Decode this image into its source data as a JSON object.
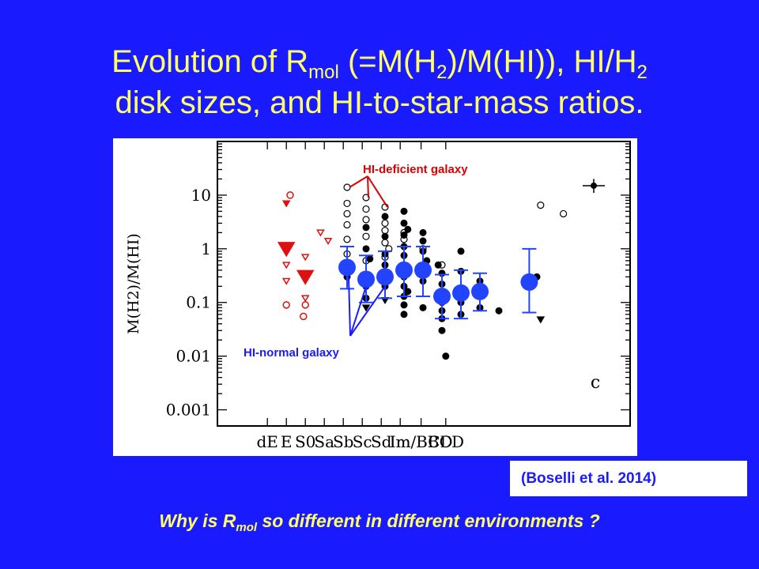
{
  "slide": {
    "title_line1_a": "Evolution of  R",
    "title_line1_sub1": "mol",
    "title_line1_b": " (=M(H",
    "title_line1_sub2": "2",
    "title_line1_c": ")/M(HI)),   HI/H",
    "title_line1_sub3": "2",
    "title_line2": "disk sizes, and HI-to-star-mass ratios.",
    "citation": "(Boselli et al. 2014)",
    "question_a": "Why is R",
    "question_sub": "mol",
    "question_b": "  so different in different environments ?"
  },
  "colors": {
    "background": "#1a1aff",
    "title": "#ffff66",
    "hi_deficient": "#dd0000",
    "hi_normal": "#1a1aff",
    "mean_points": "#2244ff",
    "early_type_points": "#dd1111"
  },
  "chart_data": {
    "type": "scatter",
    "ylabel": "M(H2)/M(HI)",
    "yscale": "log",
    "ylim": [
      0.0005,
      100
    ],
    "yticks": [
      {
        "value": 10,
        "label": "10"
      },
      {
        "value": 1,
        "label": "1"
      },
      {
        "value": 0.1,
        "label": "0.1"
      },
      {
        "value": 0.01,
        "label": "0.01"
      },
      {
        "value": 0.001,
        "label": "0.001"
      }
    ],
    "categories": [
      "dE",
      "E",
      "S0",
      "Sa",
      "Sb",
      "Sc",
      "Sd",
      "Im",
      "Im/BCD",
      "BCD"
    ],
    "panel_label": "c",
    "annotations": {
      "deficient": "HI-deficient galaxy",
      "normal": "HI-normal galaxy"
    },
    "mean_points": [
      {
        "x": 3.0,
        "y": 0.45,
        "lo": 0.18,
        "hi": 1.1
      },
      {
        "x": 3.5,
        "y": 0.27,
        "lo": 0.1,
        "hi": 0.75
      },
      {
        "x": 4.0,
        "y": 0.3,
        "lo": 0.12,
        "hi": 0.9
      },
      {
        "x": 4.5,
        "y": 0.4,
        "lo": 0.13,
        "hi": 1.1
      },
      {
        "x": 5.0,
        "y": 0.4,
        "lo": 0.13,
        "hi": 1.1
      },
      {
        "x": 5.5,
        "y": 0.13,
        "lo": 0.05,
        "hi": 0.33
      },
      {
        "x": 6.0,
        "y": 0.15,
        "lo": 0.05,
        "hi": 0.4
      },
      {
        "x": 6.5,
        "y": 0.16,
        "lo": 0.07,
        "hi": 0.35
      },
      {
        "x": 7.8,
        "y": 0.24,
        "lo": 0.065,
        "hi": 1.0
      }
    ],
    "deficient_limits_large": [
      {
        "x": 1.4,
        "y": 1.0
      },
      {
        "x": 1.9,
        "y": 0.3
      }
    ],
    "deficient_limits_small": [
      {
        "x": 1.4,
        "y": 7.0
      },
      {
        "x": 1.4,
        "y": 0.5
      },
      {
        "x": 1.4,
        "y": 0.25
      },
      {
        "x": 1.9,
        "y": 0.7
      },
      {
        "x": 1.9,
        "y": 0.12
      },
      {
        "x": 2.3,
        "y": 2.0
      },
      {
        "x": 2.5,
        "y": 1.4
      }
    ],
    "deficient_open": [
      {
        "x": 1.5,
        "y": 10.0
      },
      {
        "x": 1.4,
        "y": 0.09
      },
      {
        "x": 1.9,
        "y": 0.09
      },
      {
        "x": 1.85,
        "y": 0.055
      }
    ],
    "normal_limits": [
      {
        "x": 3.5,
        "y": 0.08
      },
      {
        "x": 4.0,
        "y": 0.11
      },
      {
        "x": 8.1,
        "y": 0.048
      }
    ],
    "error_bar_sample": {
      "x": 9.5,
      "y": 15,
      "lo": 11,
      "hi": 20
    },
    "hi_normal_filled": [
      {
        "x": 3.0,
        "y": 0.3
      },
      {
        "x": 3.5,
        "y": 2.5
      },
      {
        "x": 3.5,
        "y": 1.0
      },
      {
        "x": 3.5,
        "y": 0.2
      },
      {
        "x": 3.5,
        "y": 0.12
      },
      {
        "x": 3.6,
        "y": 0.65
      },
      {
        "x": 4.0,
        "y": 4.0
      },
      {
        "x": 4.0,
        "y": 1.7
      },
      {
        "x": 4.0,
        "y": 0.8
      },
      {
        "x": 4.0,
        "y": 0.5
      },
      {
        "x": 4.0,
        "y": 0.2
      },
      {
        "x": 4.1,
        "y": 0.35
      },
      {
        "x": 4.5,
        "y": 5.0
      },
      {
        "x": 4.5,
        "y": 3.0
      },
      {
        "x": 4.5,
        "y": 1.8
      },
      {
        "x": 4.5,
        "y": 1.1
      },
      {
        "x": 4.5,
        "y": 0.75
      },
      {
        "x": 4.5,
        "y": 0.5
      },
      {
        "x": 4.5,
        "y": 0.3
      },
      {
        "x": 4.5,
        "y": 0.2
      },
      {
        "x": 4.5,
        "y": 0.13
      },
      {
        "x": 4.5,
        "y": 0.09
      },
      {
        "x": 4.5,
        "y": 0.06
      },
      {
        "x": 4.6,
        "y": 2.3
      },
      {
        "x": 4.6,
        "y": 0.4
      },
      {
        "x": 4.6,
        "y": 0.16
      },
      {
        "x": 5.0,
        "y": 2.0
      },
      {
        "x": 5.0,
        "y": 1.4
      },
      {
        "x": 5.0,
        "y": 0.9
      },
      {
        "x": 5.0,
        "y": 0.25
      },
      {
        "x": 5.0,
        "y": 0.08
      },
      {
        "x": 5.1,
        "y": 0.6
      },
      {
        "x": 5.4,
        "y": 0.5
      },
      {
        "x": 5.5,
        "y": 0.35
      },
      {
        "x": 5.5,
        "y": 0.22
      },
      {
        "x": 5.5,
        "y": 0.15
      },
      {
        "x": 5.5,
        "y": 0.1
      },
      {
        "x": 5.5,
        "y": 0.07
      },
      {
        "x": 5.5,
        "y": 0.05
      },
      {
        "x": 5.5,
        "y": 0.03
      },
      {
        "x": 5.6,
        "y": 0.01
      },
      {
        "x": 6.0,
        "y": 0.9
      },
      {
        "x": 6.0,
        "y": 0.38
      },
      {
        "x": 6.0,
        "y": 0.1
      },
      {
        "x": 6.0,
        "y": 0.06
      },
      {
        "x": 6.5,
        "y": 0.25
      },
      {
        "x": 6.5,
        "y": 0.08
      },
      {
        "x": 7.0,
        "y": 0.07
      },
      {
        "x": 8.0,
        "y": 0.3
      }
    ],
    "hi_deficient_open": [
      {
        "x": 3.0,
        "y": 14
      },
      {
        "x": 3.0,
        "y": 7
      },
      {
        "x": 3.0,
        "y": 4.5
      },
      {
        "x": 3.0,
        "y": 2.8
      },
      {
        "x": 3.0,
        "y": 1.5
      },
      {
        "x": 3.0,
        "y": 0.8
      },
      {
        "x": 3.5,
        "y": 9
      },
      {
        "x": 3.5,
        "y": 5.5
      },
      {
        "x": 3.5,
        "y": 3.5
      },
      {
        "x": 3.5,
        "y": 1.7
      },
      {
        "x": 3.5,
        "y": 0.6
      },
      {
        "x": 4.0,
        "y": 6
      },
      {
        "x": 4.0,
        "y": 3
      },
      {
        "x": 4.0,
        "y": 2.2
      },
      {
        "x": 4.0,
        "y": 1.3
      },
      {
        "x": 4.0,
        "y": 0.7
      },
      {
        "x": 4.1,
        "y": 1.0
      },
      {
        "x": 4.5,
        "y": 2.0
      },
      {
        "x": 4.5,
        "y": 1.5
      },
      {
        "x": 5.0,
        "y": 1.0
      },
      {
        "x": 5.5,
        "y": 0.5
      },
      {
        "x": 8.1,
        "y": 6.5
      },
      {
        "x": 8.7,
        "y": 4.5
      }
    ]
  }
}
